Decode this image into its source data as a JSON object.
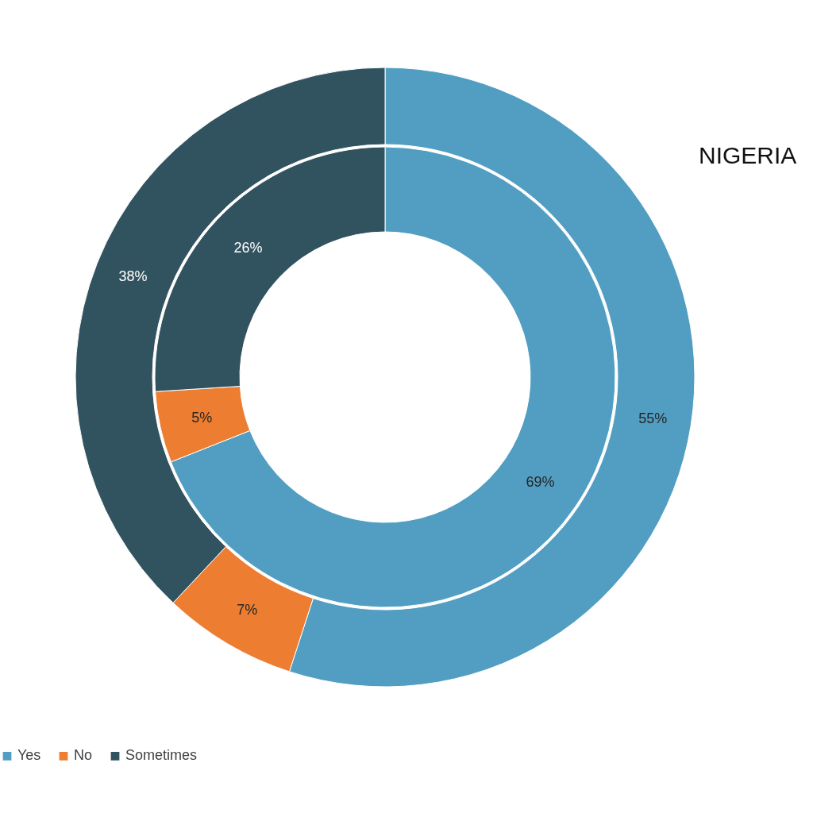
{
  "chart_data": {
    "type": "donut",
    "categories": [
      "Yes",
      "No",
      "Sometimes"
    ],
    "colors": [
      "#519ec2",
      "#ed7d31",
      "#31525f"
    ],
    "series": [
      {
        "name": "NIGERIA",
        "values": [
          55,
          7,
          38
        ],
        "value_labels": [
          "55%",
          "7%",
          "38%"
        ]
      },
      {
        "values": [
          69,
          5,
          26
        ],
        "value_labels": [
          "69%",
          "5%",
          "26%"
        ]
      }
    ],
    "legend": "bottom"
  }
}
